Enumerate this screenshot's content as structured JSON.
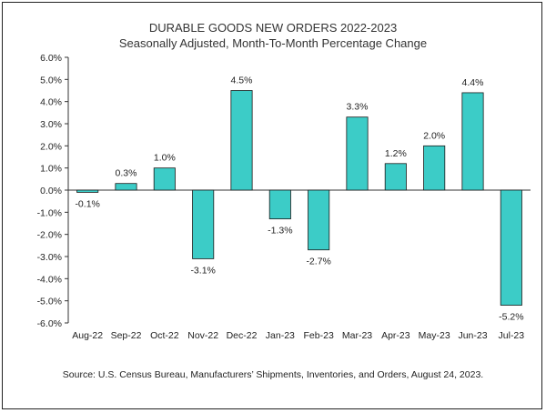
{
  "chart_data": {
    "type": "bar",
    "title": "DURABLE GOODS NEW ORDERS 2022-2023",
    "subtitle": "Seasonally Adjusted,  Month-To-Month Percentage Change",
    "categories": [
      "Aug-22",
      "Sep-22",
      "Oct-22",
      "Nov-22",
      "Dec-22",
      "Jan-23",
      "Feb-23",
      "Mar-23",
      "Apr-23",
      "May-23",
      "Jun-23",
      "Jul-23"
    ],
    "values": [
      -0.1,
      0.3,
      1.0,
      -3.1,
      4.5,
      -1.3,
      -2.7,
      3.3,
      1.2,
      2.0,
      4.4,
      -5.2
    ],
    "data_labels": [
      "-0.1%",
      "0.3%",
      "1.0%",
      "-3.1%",
      "4.5%",
      "-1.3%",
      "-2.7%",
      "3.3%",
      "1.2%",
      "2.0%",
      "4.4%",
      "-5.2%"
    ],
    "y_ticks": [
      "6.0%",
      "5.0%",
      "4.0%",
      "3.0%",
      "2.0%",
      "1.0%",
      "0.0%",
      "-1.0%",
      "-2.0%",
      "-3.0%",
      "-4.0%",
      "-5.0%",
      "-6.0%"
    ],
    "ylim": [
      -6,
      6
    ],
    "xlabel": "",
    "ylabel": "",
    "grid": false,
    "bar_color": "#3cccc7",
    "bar_edge_color": "#1a1a1a"
  },
  "source": "Source: U.S. Census Bureau, Manufacturers’ Shipments, Inventories, and Orders, August 24, 2023."
}
